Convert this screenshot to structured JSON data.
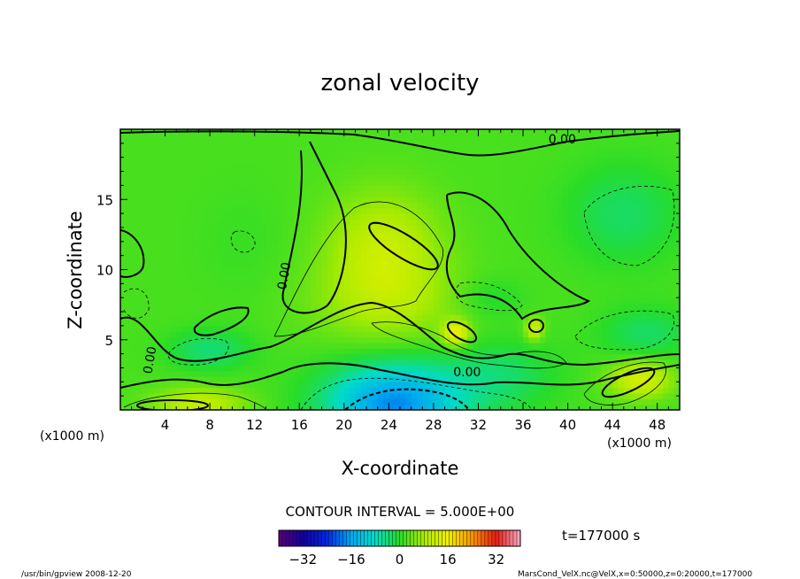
{
  "chart_data": {
    "type": "heatmap",
    "title": "zonal velocity",
    "xlabel": "X-coordinate",
    "ylabel": "Z-coordinate",
    "x_unit_left": "(x1000 m)",
    "x_unit_right": "(x1000 m)",
    "xlim": [
      0,
      50
    ],
    "ylim": [
      0,
      20
    ],
    "x_ticks": [
      4,
      8,
      12,
      16,
      20,
      24,
      28,
      32,
      36,
      40,
      44,
      48
    ],
    "y_ticks": [
      5,
      10,
      15
    ],
    "contour_interval_label": "CONTOUR INTERVAL = 5.000E+00",
    "contour_labels": [
      {
        "text": "0.00",
        "x": 39.5,
        "z": 19.0
      },
      {
        "text": "0.00",
        "x": 15.0,
        "z": 9.5
      },
      {
        "text": "0.00",
        "x": 3.0,
        "z": 3.5
      },
      {
        "text": "0.00",
        "x": 31.0,
        "z": 2.4
      }
    ],
    "colorbar": {
      "range": [
        -40,
        40
      ],
      "ticks": [
        -32,
        -16,
        0,
        16,
        32
      ]
    },
    "time_label": "t=177000 s",
    "field_features": [
      {
        "x": 24.5,
        "z": 0.5,
        "sx": 6,
        "sz": 2.8,
        "value": -20
      },
      {
        "x": 34,
        "z": 2.5,
        "sx": 5,
        "sz": 2.5,
        "value": -5
      },
      {
        "x": 8,
        "z": 4.3,
        "sx": 3.5,
        "sz": 1.4,
        "value": -6
      },
      {
        "x": 7,
        "z": 0.4,
        "sx": 4,
        "sz": 1.2,
        "value": 9
      },
      {
        "x": 23.5,
        "z": 11.5,
        "sx": 5,
        "sz": 4,
        "value": 9
      },
      {
        "x": 24,
        "z": 7.5,
        "sx": 7,
        "sz": 3,
        "value": 5
      },
      {
        "x": 30,
        "z": 5.5,
        "sx": 1.2,
        "sz": 0.9,
        "value": 13
      },
      {
        "x": 37,
        "z": 5.8,
        "sx": 0.8,
        "sz": 0.8,
        "value": 11
      },
      {
        "x": 46.5,
        "z": 2.2,
        "sx": 2.8,
        "sz": 1.3,
        "value": 11
      },
      {
        "x": 45,
        "z": 14,
        "sx": 5,
        "sz": 3.5,
        "value": -5
      },
      {
        "x": 47,
        "z": 5.5,
        "sx": 4,
        "sz": 1.8,
        "value": -5
      },
      {
        "x": 11,
        "z": 12,
        "sx": 4,
        "sz": 4,
        "value": -1
      },
      {
        "x": 33,
        "z": 8,
        "sx": 3,
        "sz": 1.5,
        "value": -3
      }
    ]
  },
  "footer": {
    "left": "/usr/bin/gpview   2008-12-20",
    "right": "MarsCond_VelX.nc@VelX,x=0:50000,z=0:20000,t=177000"
  }
}
